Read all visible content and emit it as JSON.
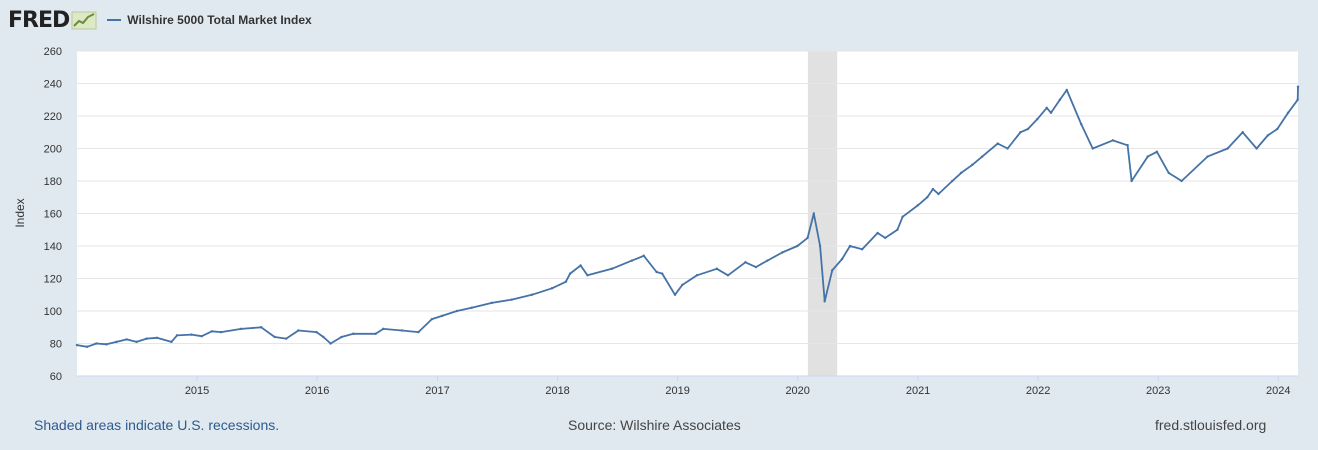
{
  "header": {
    "logo_text": "FRED",
    "legend_label": "Wilshire 5000 Total Market Index"
  },
  "footer": {
    "shaded_note": "Shaded areas indicate U.S. recessions.",
    "source": "Source: Wilshire Associates",
    "site": "fred.stlouisfed.org"
  },
  "colors": {
    "background": "#e1e9f0",
    "plot_background": "#ffffff",
    "line": "#4572a7",
    "recession_shade": "#e1e1e1",
    "link": "#2d5a8e"
  },
  "chart_data": {
    "type": "line",
    "ylabel": "Index",
    "xlabel": "",
    "ylim": [
      60,
      260
    ],
    "yticks": [
      60,
      80,
      100,
      120,
      140,
      160,
      180,
      200,
      220,
      240,
      260
    ],
    "xlim": [
      "2014-01-01",
      "2024-03-01"
    ],
    "xticks": [
      "2015",
      "2016",
      "2017",
      "2018",
      "2019",
      "2020",
      "2021",
      "2022",
      "2023",
      "2024"
    ],
    "grid": true,
    "recessions": [
      {
        "start": "2020-02-01",
        "end": "2020-04-30"
      }
    ],
    "series": [
      {
        "name": "Wilshire 5000 Total Market Index",
        "x": [
          "2014-01-01",
          "2014-02-01",
          "2014-03-01",
          "2014-04-01",
          "2014-05-01",
          "2014-06-01",
          "2014-07-01",
          "2014-08-01",
          "2014-09-01",
          "2014-10-15",
          "2014-11-01",
          "2014-12-15",
          "2015-01-15",
          "2015-02-15",
          "2015-03-15",
          "2015-05-15",
          "2015-07-15",
          "2015-08-25",
          "2015-09-29",
          "2015-11-05",
          "2015-12-30",
          "2016-01-20",
          "2016-02-11",
          "2016-03-15",
          "2016-04-20",
          "2016-06-27",
          "2016-07-20",
          "2016-09-15",
          "2016-11-04",
          "2016-12-15",
          "2017-01-15",
          "2017-03-01",
          "2017-04-15",
          "2017-06-15",
          "2017-08-15",
          "2017-10-15",
          "2017-12-15",
          "2018-01-26",
          "2018-02-08",
          "2018-03-12",
          "2018-04-02",
          "2018-06-15",
          "2018-08-15",
          "2018-09-20",
          "2018-10-29",
          "2018-11-15",
          "2018-12-24",
          "2019-01-15",
          "2019-03-01",
          "2019-04-30",
          "2019-06-03",
          "2019-07-26",
          "2019-08-27",
          "2019-10-01",
          "2019-11-15",
          "2019-12-31",
          "2020-01-31",
          "2020-02-19",
          "2020-03-09",
          "2020-03-23",
          "2020-04-15",
          "2020-05-15",
          "2020-06-08",
          "2020-07-15",
          "2020-08-31",
          "2020-09-23",
          "2020-10-30",
          "2020-11-15",
          "2020-12-31",
          "2021-01-29",
          "2021-02-15",
          "2021-03-04",
          "2021-04-15",
          "2021-05-12",
          "2021-06-15",
          "2021-07-15",
          "2021-08-31",
          "2021-09-30",
          "2021-11-08",
          "2021-12-01",
          "2021-12-29",
          "2022-01-27",
          "2022-02-09",
          "2022-03-08",
          "2022-03-29",
          "2022-05-12",
          "2022-06-16",
          "2022-08-16",
          "2022-09-30",
          "2022-10-12",
          "2022-11-30",
          "2022-12-28",
          "2023-02-02",
          "2023-03-13",
          "2023-05-31",
          "2023-07-31",
          "2023-09-15",
          "2023-10-27",
          "2023-11-30",
          "2023-12-29",
          "2024-01-31",
          "2024-02-29",
          "2024-03-01"
        ],
        "values": [
          79,
          78,
          80,
          79.5,
          81,
          82.5,
          81,
          83,
          83.5,
          81,
          85,
          85.5,
          84.5,
          87.5,
          87,
          89,
          90,
          84,
          83,
          88,
          87,
          84,
          80,
          84,
          86,
          86,
          89,
          88,
          87,
          95,
          97,
          100,
          102,
          105,
          107,
          110,
          114,
          118,
          123,
          128,
          122,
          126,
          131,
          134,
          124,
          123,
          110,
          116,
          122,
          126,
          122,
          130,
          127,
          131,
          136,
          140,
          145,
          160,
          140,
          106,
          125,
          132,
          140,
          138,
          148,
          145,
          150,
          158,
          165,
          170,
          175,
          172,
          180,
          185,
          190,
          195,
          203,
          200,
          210,
          212,
          218,
          225,
          222,
          230,
          236,
          215,
          200,
          205,
          202,
          180,
          195,
          198,
          185,
          180,
          195,
          200,
          210,
          200,
          208,
          212,
          222,
          230,
          238
        ]
      }
    ]
  }
}
